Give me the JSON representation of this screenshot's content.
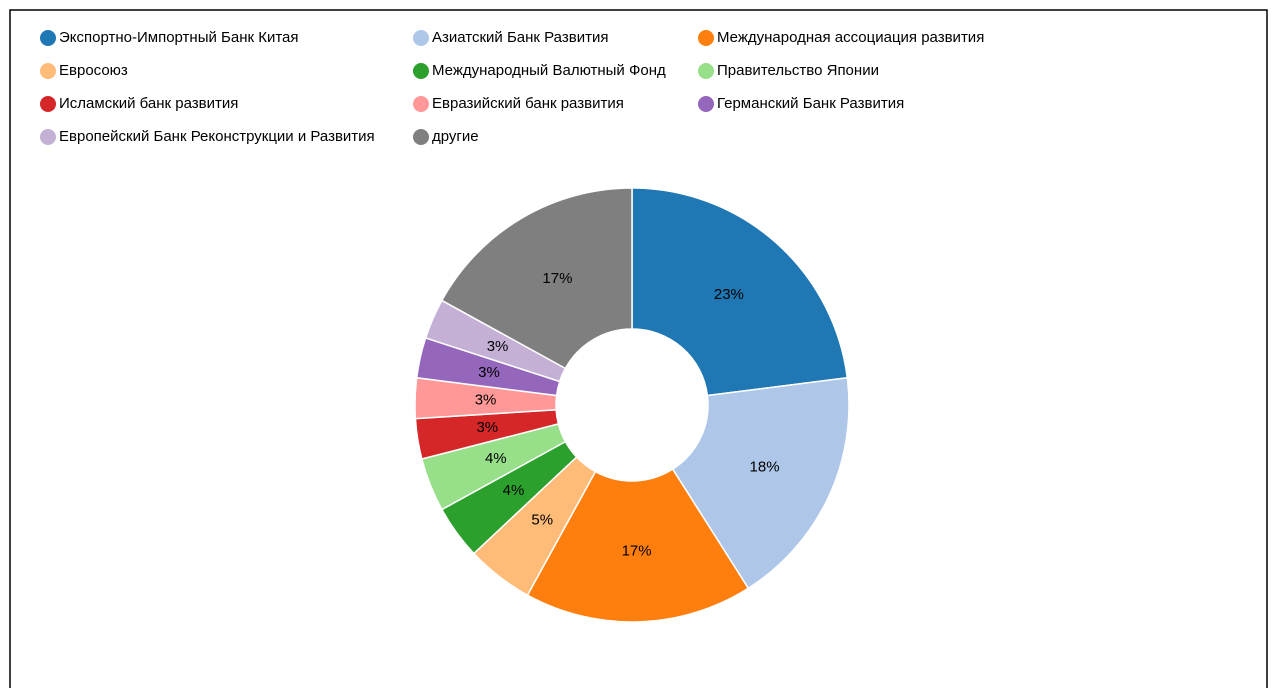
{
  "chart_data": {
    "type": "donut",
    "categories": [
      "Экспортно-Импортный Банк Китая",
      "Азиатский Банк Развития",
      "Международная ассоциация развития",
      "Евросоюз",
      "Международный Валютный Фонд",
      "Правительство Японии",
      "Исламский банк развития",
      "Евразийский банк развития",
      "Германский Банк Развития",
      "Европейский Банк Реконструкции и Развития",
      "другие"
    ],
    "values": [
      23,
      18,
      17,
      5,
      4,
      4,
      3,
      3,
      3,
      3,
      17
    ],
    "value_labels": [
      "23%",
      "18%",
      "17%",
      "5%",
      "4%",
      "4%",
      "3%",
      "3%",
      "3%",
      "3%",
      "17%"
    ],
    "colors": [
      "#1f77b4",
      "#aec7e8",
      "#ff7f0e",
      "#ffbb78",
      "#2ca02c",
      "#98df8a",
      "#d62728",
      "#ff9896",
      "#9467bd",
      "#c5b0d5",
      "#7f7f7f"
    ],
    "legend": "top-left"
  }
}
